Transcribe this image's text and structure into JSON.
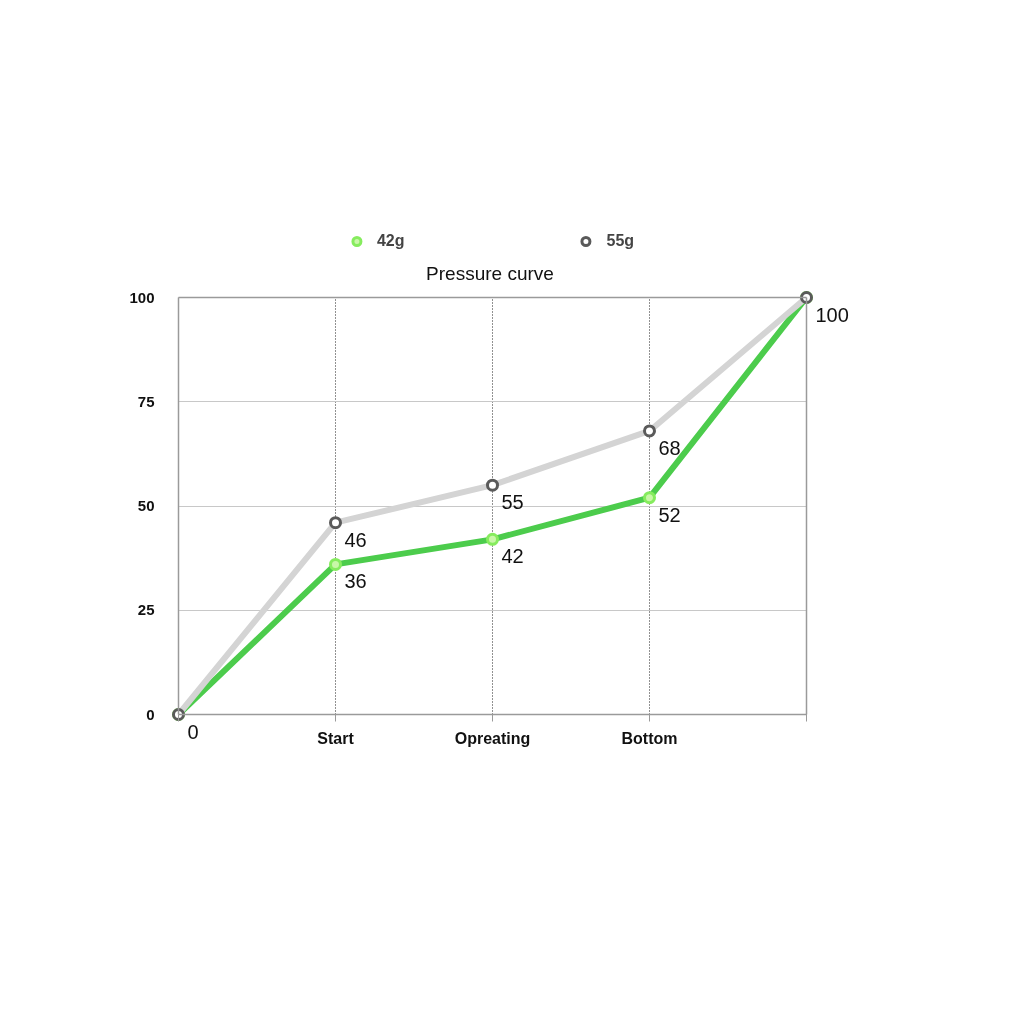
{
  "chart_data": {
    "type": "line",
    "title": "Pressure curve",
    "categories": [
      null,
      "Start",
      "Opreating",
      "Bottom",
      null
    ],
    "series": [
      {
        "name": "42g",
        "color": "#4ccc4c",
        "values": [
          0,
          36,
          42,
          52,
          100
        ],
        "value_labels": [
          "0",
          "36",
          "42",
          "52",
          "100"
        ]
      },
      {
        "name": "55g",
        "color": "#d4d4d4",
        "values": [
          0,
          46,
          55,
          68,
          100
        ],
        "value_labels": [
          null,
          "46",
          "55",
          "68",
          null
        ]
      }
    ],
    "ylim": [
      0,
      100
    ],
    "yticks": [
      0,
      25,
      50,
      75,
      100
    ],
    "grid": true,
    "legend": "top",
    "marker": "circle",
    "line_style": "solid"
  }
}
